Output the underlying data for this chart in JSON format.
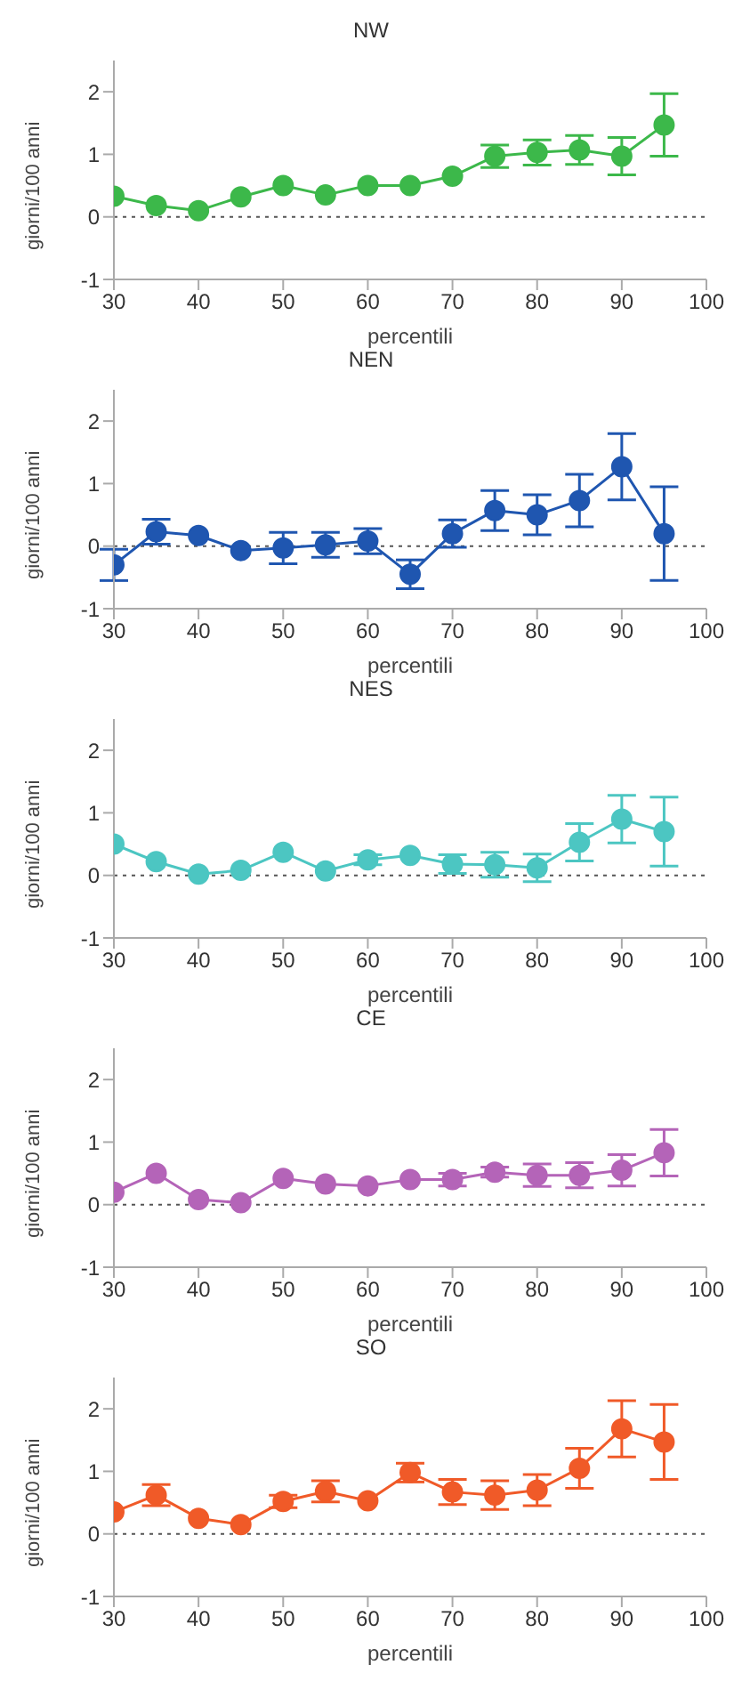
{
  "chart_data": [
    {
      "type": "line",
      "title": "NW",
      "xlabel": "percentili",
      "ylabel": "giorni/100 anni",
      "x": [
        30,
        35,
        40,
        45,
        50,
        55,
        60,
        65,
        70,
        75,
        80,
        85,
        90,
        95
      ],
      "xlim": [
        30,
        100
      ],
      "xticks": [
        30,
        40,
        50,
        60,
        70,
        80,
        90,
        100
      ],
      "ylim": [
        -1,
        2.5
      ],
      "yticks": [
        -1,
        0,
        1,
        2
      ],
      "marker": "circle",
      "line_style": "solid",
      "grid": false,
      "ref_lines": [
        {
          "axis": "y",
          "value": 0,
          "line_style": "dotted",
          "color": "#555555"
        }
      ],
      "series": [
        {
          "color": "#3cb84a",
          "values": [
            0.33,
            0.18,
            0.1,
            0.32,
            0.5,
            0.35,
            0.5,
            0.5,
            0.65,
            0.97,
            1.03,
            1.07,
            0.97,
            1.47
          ],
          "errors": [
            null,
            null,
            null,
            null,
            null,
            null,
            null,
            null,
            null,
            0.18,
            0.2,
            0.23,
            0.3,
            0.5
          ]
        }
      ]
    },
    {
      "type": "line",
      "title": "NEN",
      "xlabel": "percentili",
      "ylabel": "giorni/100 anni",
      "x": [
        30,
        35,
        40,
        45,
        50,
        55,
        60,
        65,
        70,
        75,
        80,
        85,
        90,
        95
      ],
      "xlim": [
        30,
        100
      ],
      "xticks": [
        30,
        40,
        50,
        60,
        70,
        80,
        90,
        100
      ],
      "ylim": [
        -1,
        2.5
      ],
      "yticks": [
        -1,
        0,
        1,
        2
      ],
      "marker": "circle",
      "line_style": "solid",
      "grid": false,
      "ref_lines": [
        {
          "axis": "y",
          "value": 0,
          "line_style": "dotted",
          "color": "#555555"
        }
      ],
      "series": [
        {
          "color": "#1f56b0",
          "values": [
            -0.3,
            0.23,
            0.17,
            -0.07,
            -0.03,
            0.02,
            0.08,
            -0.45,
            0.2,
            0.57,
            0.5,
            0.73,
            1.27,
            0.2
          ],
          "errors": [
            0.25,
            0.2,
            null,
            null,
            0.25,
            0.2,
            0.2,
            0.23,
            0.22,
            0.32,
            0.32,
            0.42,
            0.53,
            0.75
          ]
        }
      ]
    },
    {
      "type": "line",
      "title": "NES",
      "xlabel": "percentili",
      "ylabel": "giorni/100 anni",
      "x": [
        30,
        35,
        40,
        45,
        50,
        55,
        60,
        65,
        70,
        75,
        80,
        85,
        90,
        95
      ],
      "xlim": [
        30,
        100
      ],
      "xticks": [
        30,
        40,
        50,
        60,
        70,
        80,
        90,
        100
      ],
      "ylim": [
        -1,
        2.5
      ],
      "yticks": [
        -1,
        0,
        1,
        2
      ],
      "marker": "circle",
      "line_style": "solid",
      "grid": false,
      "ref_lines": [
        {
          "axis": "y",
          "value": 0,
          "line_style": "dotted",
          "color": "#555555"
        }
      ],
      "series": [
        {
          "color": "#4cc6c2",
          "values": [
            0.5,
            0.22,
            0.02,
            0.08,
            0.37,
            0.07,
            0.25,
            0.32,
            0.18,
            0.17,
            0.12,
            0.53,
            0.9,
            0.7
          ],
          "errors": [
            null,
            null,
            null,
            null,
            null,
            null,
            0.08,
            null,
            0.15,
            0.2,
            0.22,
            0.3,
            0.38,
            0.55
          ]
        }
      ]
    },
    {
      "type": "line",
      "title": "CE",
      "xlabel": "percentili",
      "ylabel": "giorni/100 anni",
      "x": [
        30,
        35,
        40,
        45,
        50,
        55,
        60,
        65,
        70,
        75,
        80,
        85,
        90,
        95
      ],
      "xlim": [
        30,
        100
      ],
      "xticks": [
        30,
        40,
        50,
        60,
        70,
        80,
        90,
        100
      ],
      "ylim": [
        -1,
        2.5
      ],
      "yticks": [
        -1,
        0,
        1,
        2
      ],
      "marker": "circle",
      "line_style": "solid",
      "grid": false,
      "ref_lines": [
        {
          "axis": "y",
          "value": 0,
          "line_style": "dotted",
          "color": "#555555"
        }
      ],
      "series": [
        {
          "color": "#b464b8",
          "values": [
            0.2,
            0.5,
            0.08,
            0.03,
            0.42,
            0.33,
            0.3,
            0.4,
            0.4,
            0.52,
            0.47,
            0.47,
            0.55,
            0.83
          ],
          "errors": [
            null,
            null,
            null,
            null,
            null,
            null,
            null,
            null,
            0.1,
            0.08,
            0.18,
            0.2,
            0.25,
            0.37
          ]
        }
      ]
    },
    {
      "type": "line",
      "title": "SO",
      "xlabel": "percentili",
      "ylabel": "giorni/100 anni",
      "x": [
        30,
        35,
        40,
        45,
        50,
        55,
        60,
        65,
        70,
        75,
        80,
        85,
        90,
        95
      ],
      "xlim": [
        30,
        100
      ],
      "xticks": [
        30,
        40,
        50,
        60,
        70,
        80,
        90,
        100
      ],
      "ylim": [
        -1,
        2.5
      ],
      "yticks": [
        -1,
        0,
        1,
        2
      ],
      "marker": "circle",
      "line_style": "solid",
      "grid": false,
      "ref_lines": [
        {
          "axis": "y",
          "value": 0,
          "line_style": "dotted",
          "color": "#555555"
        }
      ],
      "series": [
        {
          "color": "#f05a28",
          "values": [
            0.35,
            0.62,
            0.25,
            0.15,
            0.52,
            0.68,
            0.53,
            0.98,
            0.67,
            0.62,
            0.7,
            1.05,
            1.68,
            1.47
          ],
          "errors": [
            null,
            0.17,
            null,
            null,
            0.1,
            0.17,
            null,
            0.15,
            0.2,
            0.23,
            0.25,
            0.32,
            0.45,
            0.6
          ]
        }
      ]
    }
  ]
}
